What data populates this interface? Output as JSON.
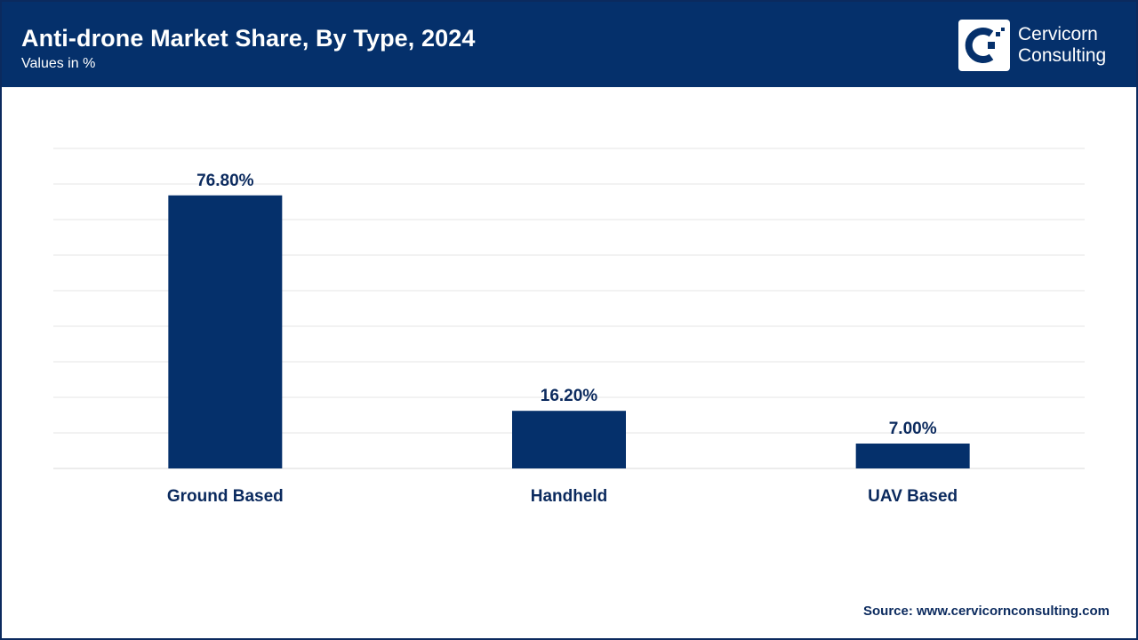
{
  "header": {
    "title": "Anti-drone Market Share, By Type, 2024",
    "subtitle": "Values in %"
  },
  "logo": {
    "line1": "Cervicorn",
    "line2": "Consulting"
  },
  "source": "Source: www.cervicornconsulting.com",
  "colors": {
    "header_bg": "#05306b",
    "bar": "#05306b",
    "text": "#0b2a5e",
    "grid": "#e6e6e6"
  },
  "chart_data": {
    "type": "bar",
    "title": "Anti-drone Market Share, By Type, 2024",
    "ylabel": "Values in %",
    "xlabel": "",
    "categories": [
      "Ground Based",
      "Handheld",
      "UAV Based"
    ],
    "values": [
      76.8,
      16.2,
      7.0
    ],
    "value_labels": [
      "76.80%",
      "16.20%",
      "7.00%"
    ],
    "ylim": [
      0,
      90
    ],
    "grid": true,
    "legend": "none"
  }
}
